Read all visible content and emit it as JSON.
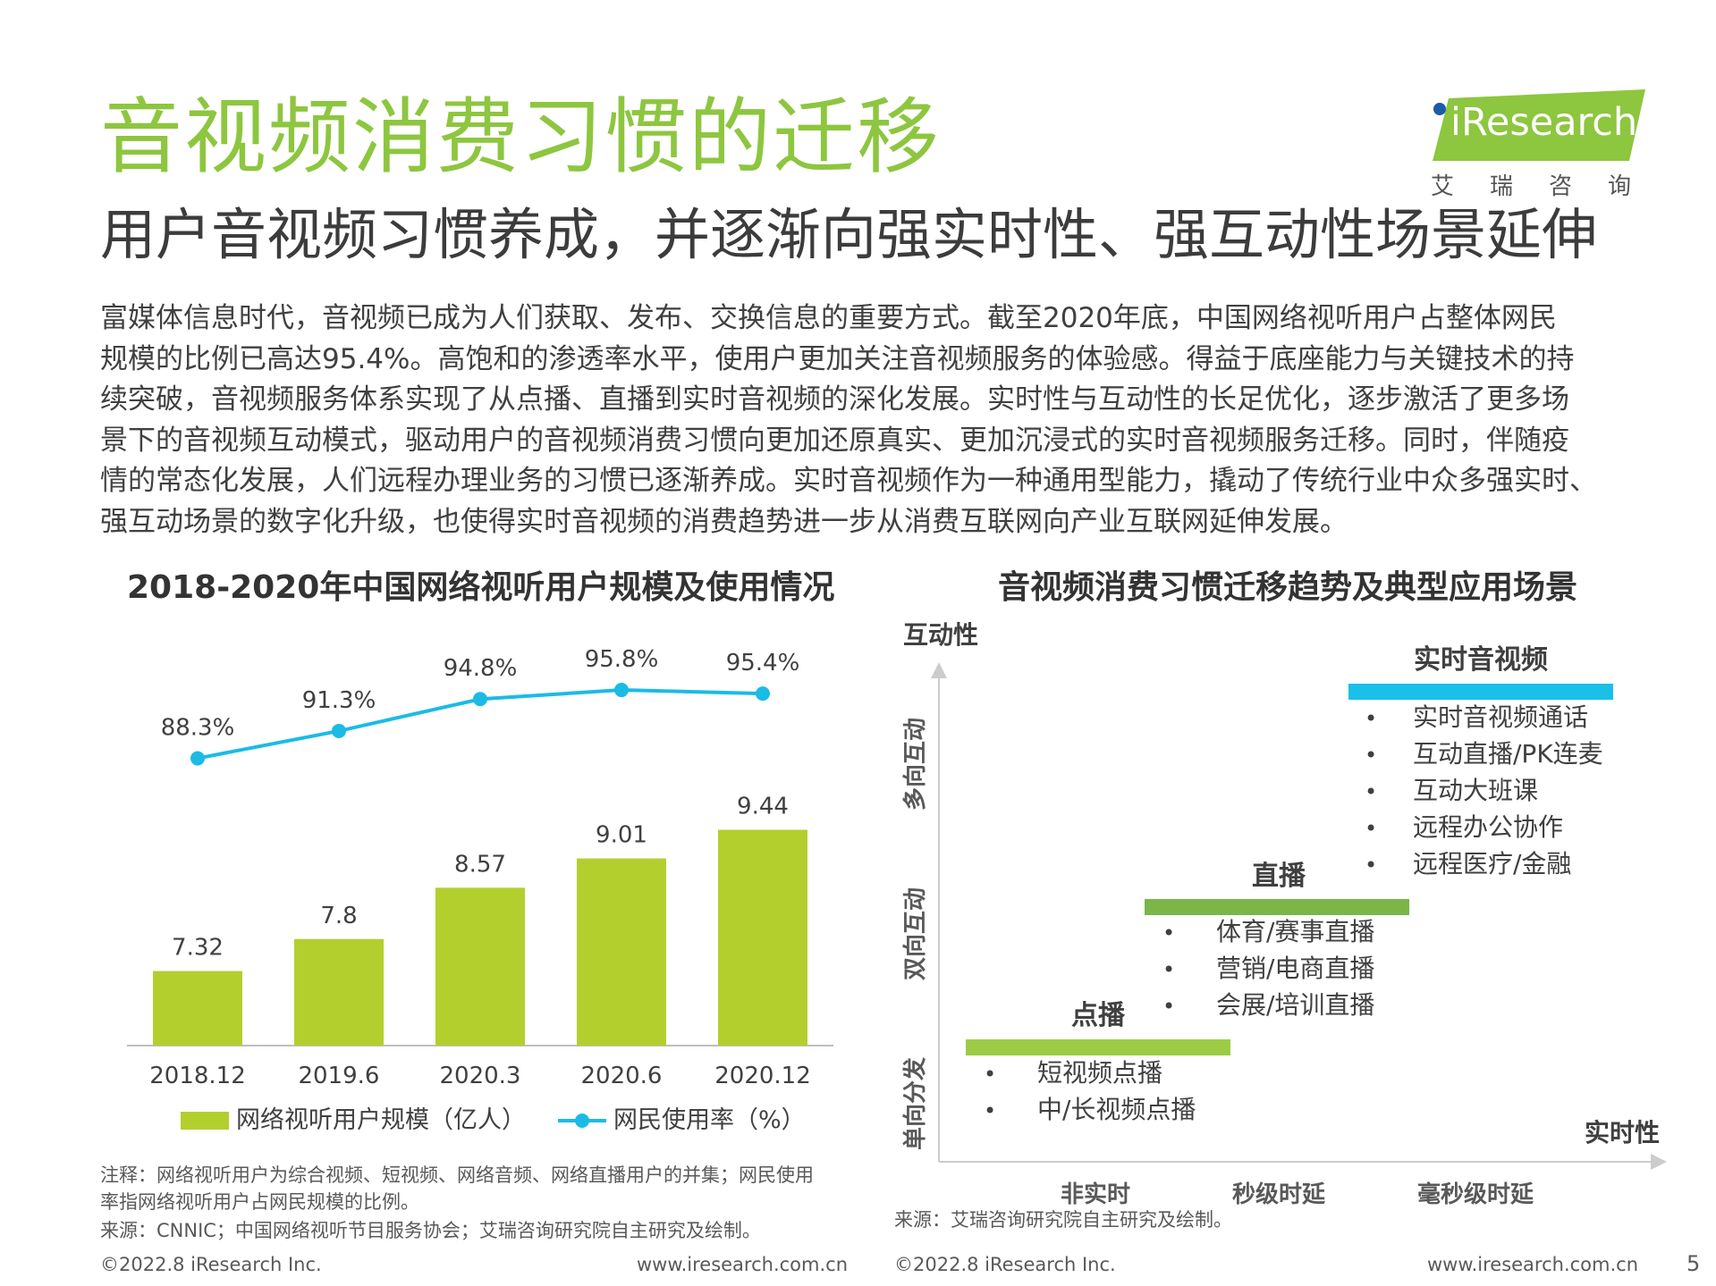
{
  "header": {
    "title": "音视频消费习惯的迁移",
    "subtitle": "用户音视频习惯养成，并逐渐向强实时性、强互动性场景延伸",
    "logo_text": "iResearch",
    "logo_cn": "艾瑞咨询",
    "accent_color": "#8dc63f"
  },
  "paragraph_lines": [
    "富媒体信息时代，音视频已成为人们获取、发布、交换信息的重要方式。截至2020年底，中国网络视听用户占整体网民",
    "规模的比例已高达95.4%。高饱和的渗透率水平，使用户更加关注音视频服务的体验感。得益于底座能力与关键技术的持",
    "续突破，音视频服务体系实现了从点播、直播到实时音视频的深化发展。实时性与互动性的长足优化，逐步激活了更多场",
    "景下的音视频互动模式，驱动用户的音视频消费习惯向更加还原真实、更加沉浸式的实时音视频服务迁移。同时，伴随疫",
    "情的常态化发展，人们远程办理业务的习惯已逐渐养成。实时音视频作为一种通用型能力，撬动了传统行业中众多强实时、",
    "强互动场景的数字化升级，也使得实时音视频的消费趋势进一步从消费互联网向产业互联网延伸发展。"
  ],
  "left_chart": {
    "title": "2018-2020年中国网络视听用户规模及使用情况",
    "note_lines": [
      "注释：网络视听用户为综合视频、短视频、网络音频、网络直播用户的并集；网民使用",
      "率指网络视听用户占网民规模的比例。",
      "来源：CNNIC；中国网络视听节目服务协会；艾瑞咨询研究院自主研究及绘制。"
    ],
    "footer_left": "©2022.8 iResearch Inc.",
    "footer_right": "www.iresearch.com.cn"
  },
  "chart_data": {
    "type": "bar",
    "categories": [
      "2018.12",
      "2019.6",
      "2020.3",
      "2020.6",
      "2020.12"
    ],
    "series": [
      {
        "name": "网络视听用户规模（亿人）",
        "kind": "bar",
        "color": "#b3cf2e",
        "values": [
          7.32,
          7.8,
          8.57,
          9.01,
          9.44
        ],
        "labels": [
          "7.32",
          "7.8",
          "8.57",
          "9.01",
          "9.44"
        ]
      },
      {
        "name": "网民使用率（%）",
        "kind": "line",
        "color": "#1bbbe5",
        "values": [
          88.3,
          91.3,
          94.8,
          95.8,
          95.4
        ],
        "labels": [
          "88.3%",
          "91.3%",
          "94.8%",
          "95.8%",
          "95.4%"
        ]
      }
    ],
    "legend_position": "bottom",
    "grid": false
  },
  "right_chart": {
    "title": "音视频消费习惯迁移趋势及典型应用场景",
    "y_axis_label": "互动性",
    "x_axis_label": "实时性",
    "y_levels": [
      "单向分发",
      "双向互动",
      "多向互动"
    ],
    "x_levels": [
      "非实时",
      "秒级时延",
      "毫秒级时延"
    ],
    "steps": [
      {
        "name": "点播",
        "color": "#9ccc45",
        "items": [
          "短视频点播",
          "中/长视频点播"
        ]
      },
      {
        "name": "直播",
        "color": "#7ab648",
        "items": [
          "体育/赛事直播",
          "营销/电商直播",
          "会展/培训直播"
        ]
      },
      {
        "name": "实时音视频",
        "color": "#1ac0e8",
        "items": [
          "实时音视频通话",
          "互动直播/PK连麦",
          "互动大班课",
          "远程办公协作",
          "远程医疗/金融"
        ]
      }
    ],
    "bullet": "•",
    "source": "来源：艾瑞咨询研究院自主研究及绘制。",
    "footer_left": "©2022.8 iResearch Inc.",
    "footer_right": "www.iresearch.com.cn",
    "page_number": "5"
  }
}
